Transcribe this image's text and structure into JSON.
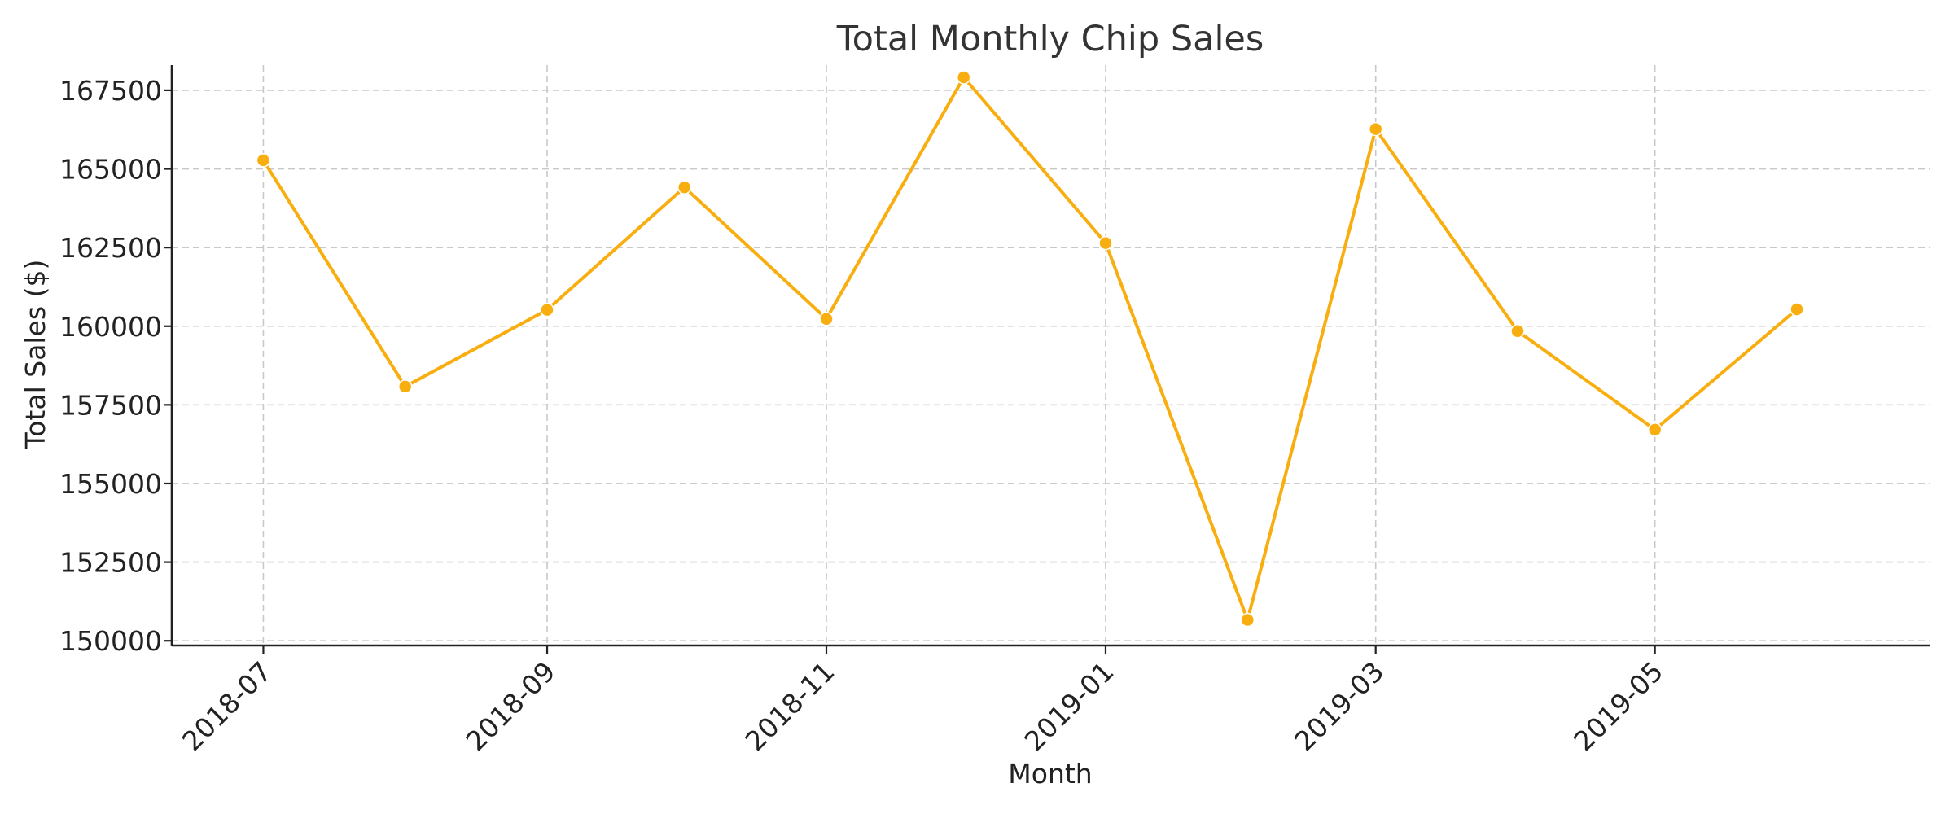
{
  "chart_data": {
    "type": "line",
    "title": "Total Monthly Chip Sales",
    "xlabel": "Month",
    "ylabel": "Total Sales ($)",
    "x": [
      "2018-07",
      "2018-08",
      "2018-09",
      "2018-10",
      "2018-11",
      "2018-12",
      "2019-01",
      "2019-02",
      "2019-03",
      "2019-04",
      "2019-05",
      "2019-06"
    ],
    "series": [
      {
        "color": "#F9AE10",
        "values": [
          165275,
          158081,
          160522,
          164416,
          160233,
          167913,
          162643,
          150665,
          166265,
          159846,
          156711,
          160537
        ]
      }
    ],
    "x_ticks": [
      "2018-07",
      "2018-09",
      "2018-11",
      "2019-01",
      "2019-03",
      "2019-05"
    ],
    "y_ticks": [
      150000,
      152500,
      155000,
      157500,
      160000,
      162500,
      165000,
      167500
    ],
    "y_tick_labels": [
      "150000",
      "152500",
      "155000",
      "157500",
      "160000",
      "162500",
      "165000",
      "167500"
    ],
    "ylim": [
      149850,
      168300
    ],
    "xlim": [
      "2018-06-11",
      "2019-06-30"
    ],
    "grid": true,
    "legend": "none"
  }
}
